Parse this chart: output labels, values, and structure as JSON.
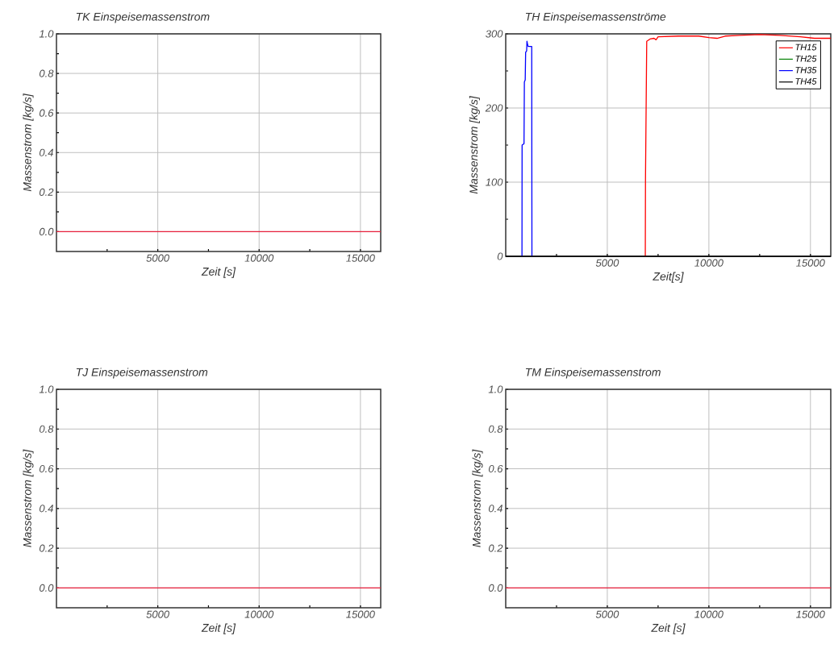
{
  "chart_data": [
    {
      "type": "line",
      "title": "TK Einspeisemassenstrom",
      "xlabel": "Zeit [s]",
      "ylabel": "Massenstrom [kg/s]",
      "xlim": [
        0,
        16000
      ],
      "ylim": [
        -0.1,
        1.0
      ],
      "xticks": [
        {
          "value": 2500,
          "label": null
        },
        5000,
        {
          "value": 7500,
          "label": null
        },
        10000,
        {
          "value": 12500,
          "label": null
        },
        15000
      ],
      "yticks": [
        {
          "value": 0,
          "label": "0.0"
        },
        {
          "value": 0.1,
          "label": null
        },
        {
          "value": 0.2,
          "label": "0.2"
        },
        {
          "value": 0.3,
          "label": null
        },
        {
          "value": 0.4,
          "label": "0.4"
        },
        {
          "value": 0.5,
          "label": null
        },
        {
          "value": 0.6,
          "label": "0.6"
        },
        {
          "value": 0.7,
          "label": null
        },
        {
          "value": 0.8,
          "label": "0.8"
        },
        {
          "value": 0.9,
          "label": null
        },
        {
          "value": 1.0,
          "label": "1.0"
        }
      ],
      "grid": true,
      "legend": false,
      "series": [
        {
          "color": "#e8203c",
          "x": [
            0,
            16000
          ],
          "values": [
            0,
            0
          ]
        }
      ]
    },
    {
      "type": "line",
      "title": "TH Einspeisemassenströme",
      "xlabel": "Zeit[s]",
      "ylabel": "Massenstrom [kg/s]",
      "xlim": [
        0,
        16000
      ],
      "ylim": [
        0,
        300
      ],
      "xticks": [
        {
          "value": 2500,
          "label": null
        },
        5000,
        {
          "value": 7500,
          "label": null
        },
        10000,
        {
          "value": 12500,
          "label": null
        },
        15000
      ],
      "yticks": [
        0,
        {
          "value": 50,
          "label": null
        },
        100,
        {
          "value": 150,
          "label": null
        },
        200,
        {
          "value": 250,
          "label": null
        },
        300
      ],
      "grid": true,
      "legend": "top right",
      "series": [
        {
          "name": "TH15",
          "color": "#ff0000",
          "x": [
            6870,
            6880,
            6940,
            7100,
            7300,
            7400,
            7500,
            8500,
            9500,
            10000,
            10400,
            10800,
            11500,
            12500,
            13500,
            14500,
            15200,
            16000
          ],
          "values": [
            0,
            105,
            290,
            293,
            294,
            292,
            296,
            297,
            297,
            295,
            294,
            297,
            298,
            299,
            298,
            296,
            294,
            294
          ]
        },
        {
          "name": "TH25",
          "color": "#008000"
        },
        {
          "name": "TH35",
          "color": "#0000ff",
          "x": [
            800,
            806,
            900,
            918,
            960,
            980,
            1030,
            1045,
            1080,
            1110,
            1280,
            1290
          ],
          "values": [
            0,
            150,
            152,
            235,
            238,
            275,
            277,
            290,
            285,
            283,
            283,
            0
          ]
        },
        {
          "name": "TH45",
          "color": "#000000",
          "x": [
            0,
            16000
          ],
          "values": [
            0,
            0
          ]
        }
      ]
    },
    {
      "type": "line",
      "title": "TJ Einspeisemassenstrom",
      "xlabel": "Zeit [s]",
      "ylabel": "Massenstrom [kg/s]",
      "xlim": [
        0,
        16000
      ],
      "ylim": [
        -0.1,
        1.0
      ],
      "xticks": [
        {
          "value": 2500,
          "label": null
        },
        5000,
        {
          "value": 7500,
          "label": null
        },
        10000,
        {
          "value": 12500,
          "label": null
        },
        15000
      ],
      "yticks": [
        {
          "value": 0,
          "label": "0.0"
        },
        {
          "value": 0.1,
          "label": null
        },
        {
          "value": 0.2,
          "label": "0.2"
        },
        {
          "value": 0.3,
          "label": null
        },
        {
          "value": 0.4,
          "label": "0.4"
        },
        {
          "value": 0.5,
          "label": null
        },
        {
          "value": 0.6,
          "label": "0.6"
        },
        {
          "value": 0.7,
          "label": null
        },
        {
          "value": 0.8,
          "label": "0.8"
        },
        {
          "value": 0.9,
          "label": null
        },
        {
          "value": 1.0,
          "label": "1.0"
        }
      ],
      "grid": true,
      "legend": false,
      "series": [
        {
          "color": "#e8203c",
          "x": [
            0,
            16000
          ],
          "values": [
            0,
            0
          ]
        }
      ]
    },
    {
      "type": "line",
      "title": "TM Einspeisemassenstrom",
      "xlabel": "Zeit [s]",
      "ylabel": "Massenstrom [kg/s]",
      "xlim": [
        0,
        16000
      ],
      "ylim": [
        -0.1,
        1.0
      ],
      "xticks": [
        {
          "value": 2500,
          "label": null
        },
        5000,
        {
          "value": 7500,
          "label": null
        },
        10000,
        {
          "value": 12500,
          "label": null
        },
        15000
      ],
      "yticks": [
        {
          "value": 0,
          "label": "0.0"
        },
        {
          "value": 0.1,
          "label": null
        },
        {
          "value": 0.2,
          "label": "0.2"
        },
        {
          "value": 0.3,
          "label": null
        },
        {
          "value": 0.4,
          "label": "0.4"
        },
        {
          "value": 0.5,
          "label": null
        },
        {
          "value": 0.6,
          "label": "0.6"
        },
        {
          "value": 0.7,
          "label": null
        },
        {
          "value": 0.8,
          "label": "0.8"
        },
        {
          "value": 0.9,
          "label": null
        },
        {
          "value": 1.0,
          "label": "1.0"
        }
      ],
      "grid": true,
      "legend": false,
      "series": [
        {
          "color": "#e8203c",
          "x": [
            0,
            16000
          ],
          "values": [
            0,
            0
          ]
        }
      ]
    }
  ]
}
